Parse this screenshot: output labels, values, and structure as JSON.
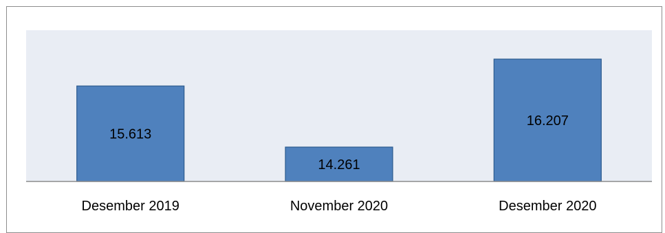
{
  "chart_data": {
    "type": "bar",
    "categories": [
      "Desember 2019",
      "November 2020",
      "Desember 2020"
    ],
    "values": [
      15.613,
      14.261,
      16.207
    ],
    "value_labels": [
      "15.613",
      "14.261",
      "16.207"
    ],
    "title": "",
    "xlabel": "",
    "ylabel": "",
    "grid": false,
    "legend": "none",
    "colors": {
      "bar_fill": "#4f81bd",
      "bar_stroke": "#2b5a8e",
      "plot_background": "#e9edf4",
      "axis_line": "#8c8c8c"
    }
  }
}
